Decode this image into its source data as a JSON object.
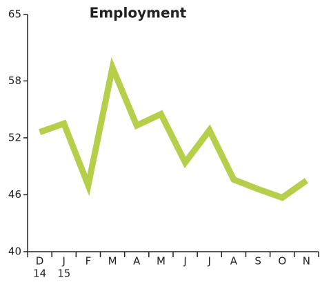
{
  "chart_data": {
    "type": "line",
    "title": "Employment",
    "categories": [
      "D",
      "J",
      "F",
      "M",
      "A",
      "M",
      "J",
      "J",
      "A",
      "S",
      "O",
      "N"
    ],
    "x_sublabels": [
      "14",
      "15",
      null,
      null,
      null,
      null,
      null,
      null,
      null,
      null,
      null,
      null
    ],
    "series": [
      {
        "name": "Employment",
        "color": "#b5cf4a",
        "values": [
          52.6,
          53.5,
          47.0,
          59.4,
          53.3,
          54.5,
          49.4,
          52.8,
          47.6,
          46.6,
          45.7,
          47.5
        ]
      }
    ],
    "ylim": [
      40,
      65
    ],
    "yticks": [
      40,
      46,
      52,
      58,
      65
    ],
    "grid": false
  }
}
